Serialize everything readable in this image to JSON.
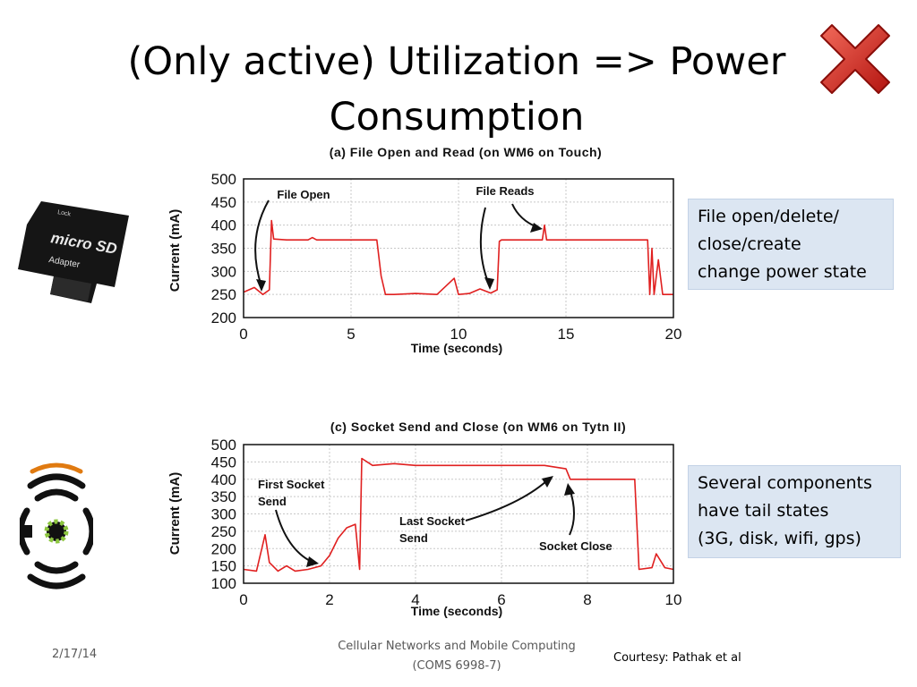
{
  "slide": {
    "title_line1": "(Only active) Utilization => Power",
    "title_line2": "Consumption",
    "callout_top": [
      "File open/delete/",
      "close/create",
      "change power state"
    ],
    "callout_bottom": [
      "Several components",
      "have tail states",
      "(3G, disk, wifi, gps)"
    ],
    "footer_date": "2/17/14",
    "footer_course_line1": "Cellular Networks and Mobile Computing",
    "footer_course_line2": "(COMS 6998-7)",
    "footer_courtesy": "Courtesy: Pathak et al",
    "sd_card_text": {
      "lock": "Lock",
      "brand": "micro SD",
      "adapter": "Adapter"
    }
  },
  "colors": {
    "trace": "#e02020",
    "grid": "#c8c8c8",
    "callout_bg": "#dce6f2",
    "x_icon": "#d9201a"
  },
  "chart_data": [
    {
      "type": "line",
      "title": "(a) File Open and Read (on WM6 on Touch)",
      "xlabel": "Time (seconds)",
      "ylabel": "Current (mA)",
      "xlim": [
        0,
        20
      ],
      "ylim": [
        200,
        500
      ],
      "xticks": [
        0,
        5,
        10,
        15,
        20
      ],
      "yticks": [
        200,
        250,
        300,
        350,
        400,
        450,
        500
      ],
      "grid": true,
      "series": [
        {
          "x": [
            0,
            0.5,
            0.9,
            1.2,
            1.3,
            1.4,
            2,
            3,
            3.2,
            3.4,
            4,
            5,
            6.2,
            6.4,
            6.6,
            7,
            8,
            9,
            9.8,
            10,
            10.5,
            11,
            11.5,
            11.8,
            11.9,
            12,
            13,
            13.9,
            14,
            14.1,
            15,
            16,
            17,
            18,
            18.8,
            18.9,
            19,
            19.1,
            19.3,
            19.5,
            20
          ],
          "y": [
            255,
            265,
            250,
            260,
            410,
            370,
            368,
            368,
            373,
            368,
            368,
            368,
            368,
            290,
            250,
            250,
            252,
            250,
            285,
            250,
            252,
            262,
            253,
            260,
            365,
            368,
            368,
            368,
            400,
            368,
            368,
            368,
            368,
            368,
            368,
            250,
            350,
            250,
            325,
            250,
            250
          ]
        }
      ],
      "annotations": [
        "File Open",
        "File Reads"
      ]
    },
    {
      "type": "line",
      "title": "(c) Socket Send and Close (on WM6 on Tytn II)",
      "xlabel": "Time (seconds)",
      "ylabel": "Current (mA)",
      "xlim": [
        0,
        10
      ],
      "ylim": [
        100,
        500
      ],
      "xticks": [
        0,
        2,
        4,
        6,
        8,
        10
      ],
      "yticks": [
        100,
        150,
        200,
        250,
        300,
        350,
        400,
        450,
        500
      ],
      "grid": true,
      "series": [
        {
          "x": [
            0,
            0.3,
            0.5,
            0.6,
            0.8,
            1.0,
            1.2,
            1.5,
            1.8,
            2.0,
            2.2,
            2.4,
            2.6,
            2.7,
            2.75,
            3,
            3.5,
            4,
            4.5,
            5,
            5.5,
            6,
            6.5,
            7,
            7.5,
            7.6,
            8,
            8.5,
            9.1,
            9.2,
            9.5,
            9.6,
            9.8,
            10
          ],
          "y": [
            140,
            135,
            240,
            160,
            135,
            150,
            135,
            140,
            150,
            180,
            230,
            260,
            270,
            140,
            460,
            440,
            445,
            440,
            440,
            440,
            440,
            440,
            440,
            440,
            430,
            400,
            400,
            400,
            400,
            140,
            145,
            185,
            145,
            140
          ]
        }
      ],
      "annotations": [
        "First Socket Send",
        "Last Socket Send",
        "Socket Close"
      ]
    }
  ]
}
